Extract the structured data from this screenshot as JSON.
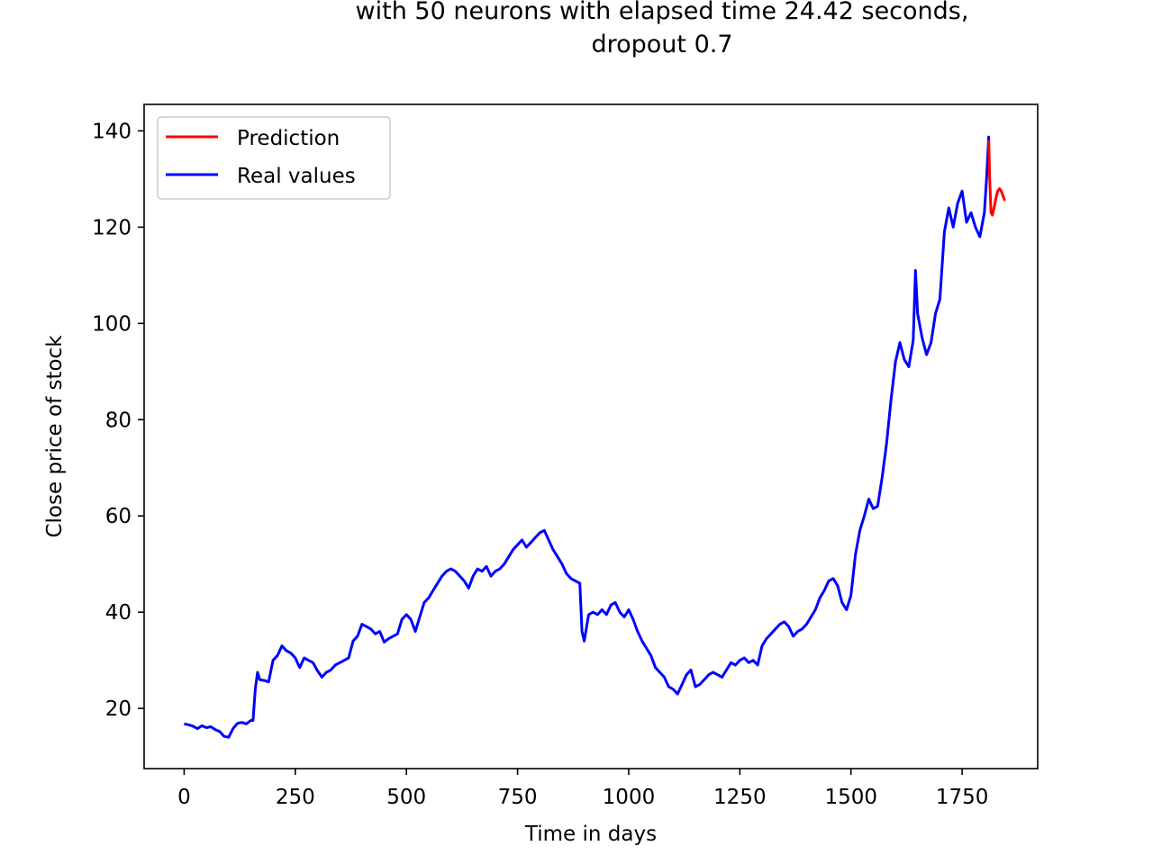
{
  "chart_data": {
    "type": "line",
    "title_lines": [
      "with 50 neurons with elapsed time 24.42 seconds,",
      "dropout 0.7"
    ],
    "xlabel": "Time in days",
    "ylabel": "Close price of stock",
    "xlim": [
      -90,
      1920
    ],
    "ylim": [
      7.5,
      145.5
    ],
    "xticks": [
      0,
      250,
      500,
      750,
      1000,
      1250,
      1500,
      1750
    ],
    "yticks": [
      20,
      40,
      60,
      80,
      100,
      120,
      140
    ],
    "legend_position": "upper-left",
    "grid": false,
    "series": [
      {
        "name": "Prediction",
        "color": "#ff0000",
        "points": [
          [
            1810,
            138
          ],
          [
            1812,
            130
          ],
          [
            1815,
            123
          ],
          [
            1818,
            122.5
          ],
          [
            1822,
            124
          ],
          [
            1826,
            126
          ],
          [
            1830,
            127.5
          ],
          [
            1834,
            128
          ],
          [
            1838,
            127.5
          ],
          [
            1842,
            126.5
          ],
          [
            1846,
            125.5
          ]
        ]
      },
      {
        "name": "Real values",
        "color": "#0000ff",
        "points": [
          [
            0,
            16.8
          ],
          [
            10,
            16.6
          ],
          [
            20,
            16.3
          ],
          [
            30,
            15.8
          ],
          [
            40,
            16.4
          ],
          [
            50,
            16.0
          ],
          [
            60,
            16.2
          ],
          [
            70,
            15.6
          ],
          [
            80,
            15.2
          ],
          [
            90,
            14.2
          ],
          [
            100,
            14.0
          ],
          [
            110,
            15.8
          ],
          [
            120,
            16.9
          ],
          [
            130,
            17.1
          ],
          [
            140,
            16.8
          ],
          [
            150,
            17.5
          ],
          [
            155,
            17.5
          ],
          [
            160,
            24.0
          ],
          [
            165,
            27.5
          ],
          [
            170,
            26.0
          ],
          [
            180,
            25.8
          ],
          [
            190,
            25.5
          ],
          [
            200,
            30.0
          ],
          [
            210,
            31.0
          ],
          [
            220,
            33.0
          ],
          [
            230,
            32.0
          ],
          [
            240,
            31.5
          ],
          [
            250,
            30.5
          ],
          [
            260,
            28.5
          ],
          [
            270,
            30.5
          ],
          [
            280,
            30.0
          ],
          [
            290,
            29.5
          ],
          [
            300,
            27.8
          ],
          [
            310,
            26.5
          ],
          [
            320,
            27.5
          ],
          [
            330,
            28.0
          ],
          [
            340,
            29.0
          ],
          [
            350,
            29.5
          ],
          [
            360,
            30.0
          ],
          [
            370,
            30.5
          ],
          [
            380,
            34.0
          ],
          [
            390,
            35.0
          ],
          [
            400,
            37.5
          ],
          [
            410,
            37.0
          ],
          [
            420,
            36.5
          ],
          [
            430,
            35.5
          ],
          [
            440,
            36.0
          ],
          [
            450,
            33.8
          ],
          [
            460,
            34.5
          ],
          [
            470,
            35.0
          ],
          [
            480,
            35.5
          ],
          [
            490,
            38.5
          ],
          [
            500,
            39.5
          ],
          [
            510,
            38.5
          ],
          [
            520,
            36.0
          ],
          [
            530,
            39.0
          ],
          [
            540,
            42.0
          ],
          [
            550,
            43.0
          ],
          [
            560,
            44.5
          ],
          [
            570,
            46.0
          ],
          [
            580,
            47.5
          ],
          [
            590,
            48.5
          ],
          [
            600,
            49.0
          ],
          [
            610,
            48.5
          ],
          [
            620,
            47.5
          ],
          [
            630,
            46.5
          ],
          [
            640,
            45.0
          ],
          [
            650,
            47.5
          ],
          [
            660,
            49.0
          ],
          [
            670,
            48.5
          ],
          [
            680,
            49.5
          ],
          [
            690,
            47.5
          ],
          [
            700,
            48.5
          ],
          [
            710,
            49.0
          ],
          [
            720,
            50.0
          ],
          [
            730,
            51.5
          ],
          [
            740,
            53.0
          ],
          [
            750,
            54.0
          ],
          [
            760,
            55.0
          ],
          [
            770,
            53.5
          ],
          [
            780,
            54.5
          ],
          [
            790,
            55.5
          ],
          [
            800,
            56.5
          ],
          [
            810,
            57.0
          ],
          [
            820,
            55.0
          ],
          [
            830,
            53.0
          ],
          [
            840,
            51.5
          ],
          [
            850,
            50.0
          ],
          [
            860,
            48.0
          ],
          [
            870,
            47.0
          ],
          [
            880,
            46.5
          ],
          [
            890,
            46.0
          ],
          [
            895,
            36.0
          ],
          [
            900,
            34.0
          ],
          [
            910,
            39.5
          ],
          [
            920,
            40.0
          ],
          [
            930,
            39.5
          ],
          [
            940,
            40.5
          ],
          [
            950,
            39.5
          ],
          [
            960,
            41.5
          ],
          [
            970,
            42.0
          ],
          [
            980,
            40.0
          ],
          [
            990,
            39.0
          ],
          [
            1000,
            40.5
          ],
          [
            1010,
            38.5
          ],
          [
            1020,
            36.0
          ],
          [
            1030,
            34.0
          ],
          [
            1040,
            32.5
          ],
          [
            1050,
            31.0
          ],
          [
            1060,
            28.5
          ],
          [
            1070,
            27.5
          ],
          [
            1080,
            26.5
          ],
          [
            1090,
            24.5
          ],
          [
            1100,
            24.0
          ],
          [
            1110,
            23.0
          ],
          [
            1120,
            25.0
          ],
          [
            1130,
            27.0
          ],
          [
            1140,
            28.0
          ],
          [
            1150,
            24.5
          ],
          [
            1160,
            25.0
          ],
          [
            1170,
            26.0
          ],
          [
            1180,
            27.0
          ],
          [
            1190,
            27.5
          ],
          [
            1200,
            27.0
          ],
          [
            1210,
            26.5
          ],
          [
            1220,
            28.0
          ],
          [
            1230,
            29.5
          ],
          [
            1240,
            29.0
          ],
          [
            1250,
            30.0
          ],
          [
            1260,
            30.5
          ],
          [
            1270,
            29.5
          ],
          [
            1280,
            30.0
          ],
          [
            1290,
            29.0
          ],
          [
            1300,
            33.0
          ],
          [
            1310,
            34.5
          ],
          [
            1320,
            35.5
          ],
          [
            1330,
            36.5
          ],
          [
            1340,
            37.5
          ],
          [
            1350,
            38.0
          ],
          [
            1360,
            37.0
          ],
          [
            1370,
            35.0
          ],
          [
            1380,
            36.0
          ],
          [
            1390,
            36.5
          ],
          [
            1400,
            37.5
          ],
          [
            1410,
            39.0
          ],
          [
            1420,
            40.5
          ],
          [
            1430,
            43.0
          ],
          [
            1440,
            44.5
          ],
          [
            1450,
            46.5
          ],
          [
            1460,
            47.0
          ],
          [
            1470,
            45.5
          ],
          [
            1480,
            42.0
          ],
          [
            1490,
            40.5
          ],
          [
            1500,
            43.5
          ],
          [
            1510,
            52.0
          ],
          [
            1520,
            57.0
          ],
          [
            1530,
            60.0
          ],
          [
            1540,
            63.5
          ],
          [
            1550,
            61.5
          ],
          [
            1560,
            62.0
          ],
          [
            1570,
            68.0
          ],
          [
            1580,
            75.0
          ],
          [
            1590,
            84.0
          ],
          [
            1600,
            92.0
          ],
          [
            1610,
            96.0
          ],
          [
            1620,
            92.5
          ],
          [
            1630,
            91.0
          ],
          [
            1640,
            96.5
          ],
          [
            1645,
            111.0
          ],
          [
            1650,
            102.0
          ],
          [
            1660,
            97.0
          ],
          [
            1670,
            93.5
          ],
          [
            1680,
            96.0
          ],
          [
            1690,
            102.0
          ],
          [
            1700,
            105.0
          ],
          [
            1710,
            119.0
          ],
          [
            1720,
            124.0
          ],
          [
            1730,
            120.0
          ],
          [
            1740,
            125.0
          ],
          [
            1750,
            127.5
          ],
          [
            1760,
            121.0
          ],
          [
            1770,
            123.0
          ],
          [
            1780,
            120.0
          ],
          [
            1790,
            118.0
          ],
          [
            1800,
            123.0
          ],
          [
            1805,
            130.0
          ],
          [
            1810,
            139.0
          ]
        ]
      }
    ]
  }
}
